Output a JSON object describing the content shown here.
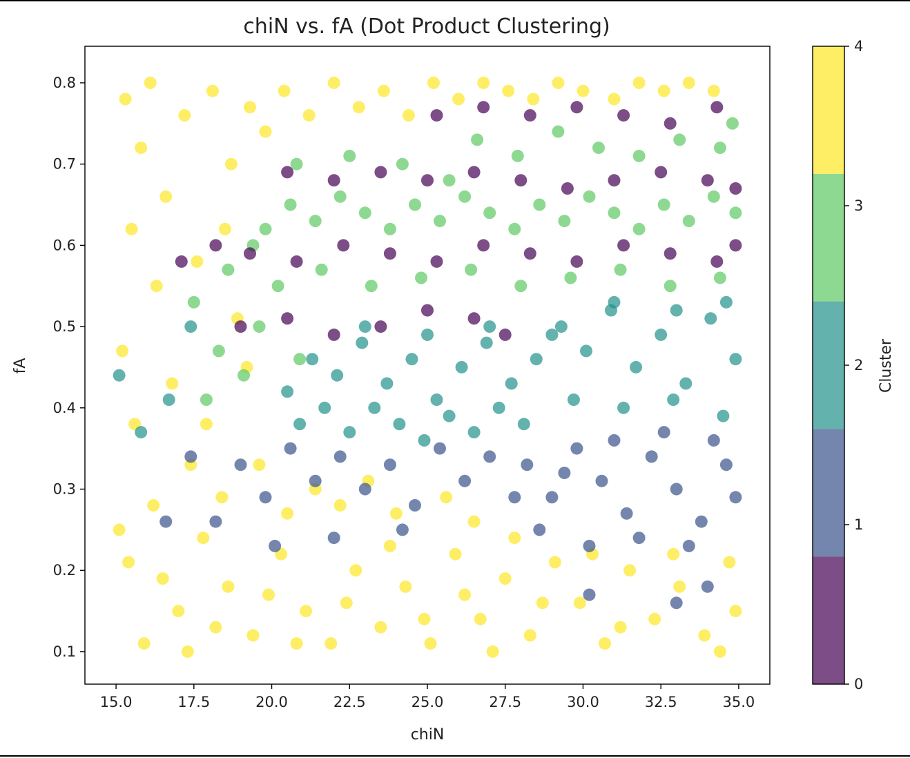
{
  "chart_data": {
    "type": "scatter",
    "title": "chiN vs. fA (Dot Product Clustering)",
    "xlabel": "chiN",
    "ylabel": "fA",
    "xlim": [
      14.0,
      36.0
    ],
    "ylim": [
      0.06,
      0.845
    ],
    "x_ticks": [
      "15.0",
      "17.5",
      "20.0",
      "22.5",
      "25.0",
      "27.5",
      "30.0",
      "32.5",
      "35.0"
    ],
    "y_ticks": [
      "0.1",
      "0.2",
      "0.3",
      "0.4",
      "0.5",
      "0.6",
      "0.7",
      "0.8"
    ],
    "grid": false,
    "point_alpha": 0.7,
    "colorbar": {
      "label": "Cluster",
      "range": [
        0,
        4
      ],
      "ticks": [
        "0",
        "1",
        "2",
        "3",
        "4"
      ],
      "colors": [
        "#440154",
        "#3b528b",
        "#21918c",
        "#5ec962",
        "#fde725"
      ]
    },
    "series": [
      {
        "cluster": 4,
        "color": "#fde725",
        "note_regions": "fills chiN 15–35 for fA 0.10–0.23, chiN 15–21 for fA 0.23–0.80, top band fA 0.73–0.80",
        "points": [
          [
            15.3,
            0.78
          ],
          [
            16.1,
            0.8
          ],
          [
            15.8,
            0.72
          ],
          [
            16.6,
            0.66
          ],
          [
            17.2,
            0.76
          ],
          [
            15.5,
            0.62
          ],
          [
            16.3,
            0.55
          ],
          [
            15.2,
            0.47
          ],
          [
            16.8,
            0.43
          ],
          [
            15.6,
            0.38
          ],
          [
            17.4,
            0.33
          ],
          [
            16.2,
            0.28
          ],
          [
            15.4,
            0.21
          ],
          [
            17.0,
            0.15
          ],
          [
            15.9,
            0.11
          ],
          [
            18.1,
            0.79
          ],
          [
            18.7,
            0.7
          ],
          [
            19.3,
            0.77
          ],
          [
            18.5,
            0.62
          ],
          [
            19.8,
            0.74
          ],
          [
            20.4,
            0.79
          ],
          [
            21.2,
            0.76
          ],
          [
            22.0,
            0.8
          ],
          [
            22.8,
            0.77
          ],
          [
            23.6,
            0.79
          ],
          [
            24.4,
            0.76
          ],
          [
            25.2,
            0.8
          ],
          [
            26.0,
            0.78
          ],
          [
            26.8,
            0.8
          ],
          [
            27.6,
            0.79
          ],
          [
            28.4,
            0.78
          ],
          [
            29.2,
            0.8
          ],
          [
            30.0,
            0.79
          ],
          [
            31.0,
            0.78
          ],
          [
            31.8,
            0.8
          ],
          [
            32.6,
            0.79
          ],
          [
            33.4,
            0.8
          ],
          [
            34.2,
            0.79
          ],
          [
            17.8,
            0.24
          ],
          [
            18.6,
            0.18
          ],
          [
            19.4,
            0.12
          ],
          [
            20.3,
            0.22
          ],
          [
            21.1,
            0.15
          ],
          [
            21.9,
            0.11
          ],
          [
            22.7,
            0.2
          ],
          [
            23.5,
            0.13
          ],
          [
            24.3,
            0.18
          ],
          [
            25.1,
            0.11
          ],
          [
            25.9,
            0.22
          ],
          [
            26.7,
            0.14
          ],
          [
            27.5,
            0.19
          ],
          [
            28.3,
            0.12
          ],
          [
            29.1,
            0.21
          ],
          [
            29.9,
            0.16
          ],
          [
            30.7,
            0.11
          ],
          [
            31.5,
            0.2
          ],
          [
            32.3,
            0.14
          ],
          [
            33.1,
            0.18
          ],
          [
            33.9,
            0.12
          ],
          [
            34.7,
            0.21
          ],
          [
            34.9,
            0.15
          ],
          [
            17.6,
            0.58
          ],
          [
            18.9,
            0.51
          ],
          [
            19.2,
            0.45
          ],
          [
            17.9,
            0.38
          ],
          [
            18.4,
            0.29
          ],
          [
            19.6,
            0.33
          ],
          [
            20.5,
            0.27
          ],
          [
            21.4,
            0.3
          ],
          [
            22.2,
            0.28
          ],
          [
            23.1,
            0.31
          ],
          [
            24.0,
            0.27
          ],
          [
            25.6,
            0.29
          ],
          [
            26.5,
            0.26
          ],
          [
            27.8,
            0.24
          ],
          [
            15.1,
            0.25
          ],
          [
            16.5,
            0.19
          ],
          [
            17.3,
            0.1
          ],
          [
            18.2,
            0.13
          ],
          [
            19.9,
            0.17
          ],
          [
            20.8,
            0.11
          ],
          [
            22.4,
            0.16
          ],
          [
            23.8,
            0.23
          ],
          [
            24.9,
            0.14
          ],
          [
            26.2,
            0.17
          ],
          [
            27.1,
            0.1
          ],
          [
            28.7,
            0.16
          ],
          [
            30.3,
            0.22
          ],
          [
            31.2,
            0.13
          ],
          [
            32.9,
            0.22
          ],
          [
            34.4,
            0.1
          ]
        ]
      },
      {
        "cluster": 3,
        "color": "#5ec962",
        "note_regions": "bands fA 0.55–0.77 over chiN 19.5–35 and fA 0.40–0.55 near chiN 17–21",
        "points": [
          [
            19.8,
            0.62
          ],
          [
            20.6,
            0.65
          ],
          [
            21.4,
            0.63
          ],
          [
            22.2,
            0.66
          ],
          [
            23.0,
            0.64
          ],
          [
            23.8,
            0.62
          ],
          [
            24.6,
            0.65
          ],
          [
            25.4,
            0.63
          ],
          [
            26.2,
            0.66
          ],
          [
            27.0,
            0.64
          ],
          [
            27.8,
            0.62
          ],
          [
            28.6,
            0.65
          ],
          [
            29.4,
            0.63
          ],
          [
            30.2,
            0.66
          ],
          [
            31.0,
            0.64
          ],
          [
            31.8,
            0.62
          ],
          [
            32.6,
            0.65
          ],
          [
            33.4,
            0.63
          ],
          [
            34.2,
            0.66
          ],
          [
            34.9,
            0.64
          ],
          [
            20.2,
            0.55
          ],
          [
            21.6,
            0.57
          ],
          [
            23.2,
            0.55
          ],
          [
            24.8,
            0.56
          ],
          [
            26.4,
            0.57
          ],
          [
            28.0,
            0.55
          ],
          [
            29.6,
            0.56
          ],
          [
            31.2,
            0.57
          ],
          [
            32.8,
            0.55
          ],
          [
            34.4,
            0.56
          ],
          [
            26.6,
            0.73
          ],
          [
            27.9,
            0.71
          ],
          [
            29.2,
            0.74
          ],
          [
            30.5,
            0.72
          ],
          [
            31.8,
            0.71
          ],
          [
            33.1,
            0.73
          ],
          [
            34.4,
            0.72
          ],
          [
            34.8,
            0.75
          ],
          [
            17.5,
            0.53
          ],
          [
            18.3,
            0.47
          ],
          [
            19.1,
            0.44
          ],
          [
            17.9,
            0.41
          ],
          [
            19.6,
            0.5
          ],
          [
            20.9,
            0.46
          ],
          [
            18.6,
            0.57
          ],
          [
            19.4,
            0.6
          ],
          [
            20.8,
            0.7
          ],
          [
            22.5,
            0.71
          ],
          [
            24.2,
            0.7
          ],
          [
            25.7,
            0.68
          ]
        ]
      },
      {
        "cluster": 2,
        "color": "#21918c",
        "note_regions": "fA 0.36–0.52 over chiN 20–29; fA 0.38–0.54 over chiN 29–35",
        "points": [
          [
            20.5,
            0.42
          ],
          [
            21.3,
            0.46
          ],
          [
            22.1,
            0.44
          ],
          [
            22.9,
            0.48
          ],
          [
            23.7,
            0.43
          ],
          [
            24.5,
            0.46
          ],
          [
            25.3,
            0.41
          ],
          [
            26.1,
            0.45
          ],
          [
            26.9,
            0.48
          ],
          [
            27.7,
            0.43
          ],
          [
            28.5,
            0.46
          ],
          [
            29.3,
            0.5
          ],
          [
            30.1,
            0.47
          ],
          [
            30.9,
            0.52
          ],
          [
            31.7,
            0.45
          ],
          [
            32.5,
            0.49
          ],
          [
            33.3,
            0.43
          ],
          [
            34.1,
            0.51
          ],
          [
            34.9,
            0.46
          ],
          [
            20.9,
            0.38
          ],
          [
            21.7,
            0.4
          ],
          [
            22.5,
            0.37
          ],
          [
            23.3,
            0.4
          ],
          [
            24.1,
            0.38
          ],
          [
            24.9,
            0.36
          ],
          [
            25.7,
            0.39
          ],
          [
            26.5,
            0.37
          ],
          [
            27.3,
            0.4
          ],
          [
            28.1,
            0.38
          ],
          [
            29.7,
            0.41
          ],
          [
            31.3,
            0.4
          ],
          [
            32.9,
            0.41
          ],
          [
            34.5,
            0.39
          ],
          [
            23.0,
            0.5
          ],
          [
            25.0,
            0.49
          ],
          [
            27.0,
            0.5
          ],
          [
            29.0,
            0.49
          ],
          [
            31.0,
            0.53
          ],
          [
            33.0,
            0.52
          ],
          [
            34.6,
            0.53
          ],
          [
            15.1,
            0.44
          ],
          [
            15.8,
            0.37
          ],
          [
            16.7,
            0.41
          ],
          [
            17.4,
            0.5
          ]
        ]
      },
      {
        "cluster": 1,
        "color": "#3b528b",
        "note_regions": "fA 0.22–0.37 over chiN 27.5–35, sparse fA 0.24–0.38 over chiN 16–27",
        "points": [
          [
            28.2,
            0.33
          ],
          [
            29.0,
            0.29
          ],
          [
            29.8,
            0.35
          ],
          [
            30.6,
            0.31
          ],
          [
            31.4,
            0.27
          ],
          [
            32.2,
            0.34
          ],
          [
            33.0,
            0.3
          ],
          [
            33.8,
            0.26
          ],
          [
            34.6,
            0.33
          ],
          [
            34.9,
            0.29
          ],
          [
            28.6,
            0.25
          ],
          [
            30.2,
            0.23
          ],
          [
            31.8,
            0.24
          ],
          [
            33.4,
            0.23
          ],
          [
            34.2,
            0.36
          ],
          [
            32.6,
            0.37
          ],
          [
            31.0,
            0.36
          ],
          [
            29.4,
            0.32
          ],
          [
            27.8,
            0.29
          ],
          [
            27.0,
            0.34
          ],
          [
            26.2,
            0.31
          ],
          [
            25.4,
            0.35
          ],
          [
            24.6,
            0.28
          ],
          [
            23.8,
            0.33
          ],
          [
            23.0,
            0.3
          ],
          [
            22.2,
            0.34
          ],
          [
            21.4,
            0.31
          ],
          [
            20.6,
            0.35
          ],
          [
            19.8,
            0.29
          ],
          [
            19.0,
            0.33
          ],
          [
            18.2,
            0.26
          ],
          [
            17.4,
            0.34
          ],
          [
            16.6,
            0.26
          ],
          [
            30.2,
            0.17
          ],
          [
            33.0,
            0.16
          ],
          [
            34.0,
            0.18
          ],
          [
            24.2,
            0.25
          ],
          [
            22.0,
            0.24
          ],
          [
            20.1,
            0.23
          ]
        ]
      },
      {
        "cluster": 0,
        "color": "#440154",
        "note_regions": "thin stripes at fA ≈ 0.50, 0.59, 0.68, 0.76",
        "points": [
          [
            19.0,
            0.5
          ],
          [
            20.5,
            0.51
          ],
          [
            22.0,
            0.49
          ],
          [
            23.5,
            0.5
          ],
          [
            25.0,
            0.52
          ],
          [
            26.5,
            0.51
          ],
          [
            27.5,
            0.49
          ],
          [
            19.3,
            0.59
          ],
          [
            20.8,
            0.58
          ],
          [
            22.3,
            0.6
          ],
          [
            23.8,
            0.59
          ],
          [
            25.3,
            0.58
          ],
          [
            26.8,
            0.6
          ],
          [
            28.3,
            0.59
          ],
          [
            29.8,
            0.58
          ],
          [
            31.3,
            0.6
          ],
          [
            32.8,
            0.59
          ],
          [
            34.3,
            0.58
          ],
          [
            34.9,
            0.6
          ],
          [
            20.5,
            0.69
          ],
          [
            22.0,
            0.68
          ],
          [
            23.5,
            0.69
          ],
          [
            25.0,
            0.68
          ],
          [
            26.5,
            0.69
          ],
          [
            28.0,
            0.68
          ],
          [
            29.5,
            0.67
          ],
          [
            31.0,
            0.68
          ],
          [
            32.5,
            0.69
          ],
          [
            34.0,
            0.68
          ],
          [
            34.9,
            0.67
          ],
          [
            25.3,
            0.76
          ],
          [
            26.8,
            0.77
          ],
          [
            28.3,
            0.76
          ],
          [
            29.8,
            0.77
          ],
          [
            31.3,
            0.76
          ],
          [
            32.8,
            0.75
          ],
          [
            34.3,
            0.77
          ],
          [
            17.1,
            0.58
          ],
          [
            18.2,
            0.6
          ]
        ]
      }
    ]
  }
}
